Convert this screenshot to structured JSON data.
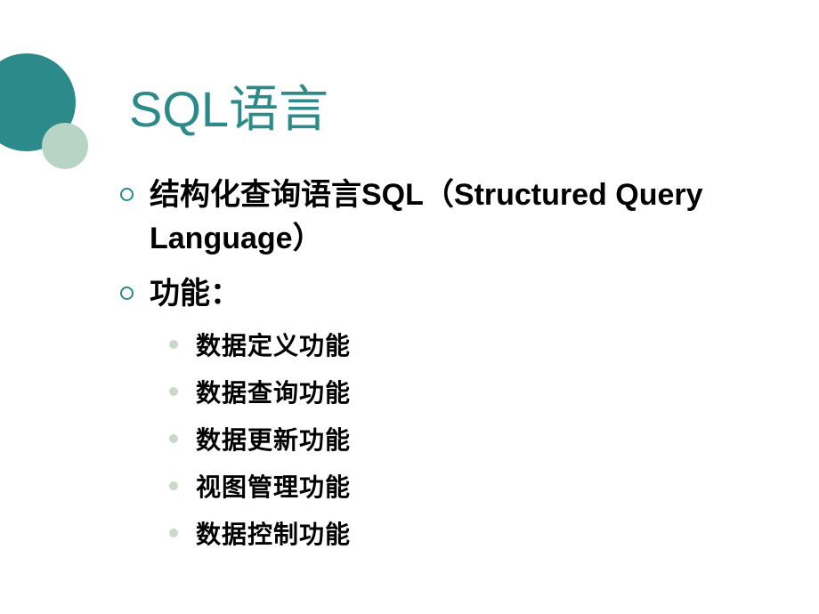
{
  "title": "SQL语言",
  "colors": {
    "accent": "#2d8a8a",
    "light_green": "#b7d4c4",
    "sub_bullet": "#c7dbc7",
    "text": "#000000",
    "background": "#ffffff"
  },
  "typography": {
    "title_fontsize": 56,
    "level1_fontsize": 34,
    "level2_fontsize": 28
  },
  "items": [
    {
      "text": "结构化查询语言SQL（Structured Query Language）",
      "children": []
    },
    {
      "text": "功能：",
      "children": [
        "数据定义功能",
        "数据查询功能",
        "数据更新功能",
        "视图管理功能",
        "数据控制功能"
      ]
    }
  ]
}
